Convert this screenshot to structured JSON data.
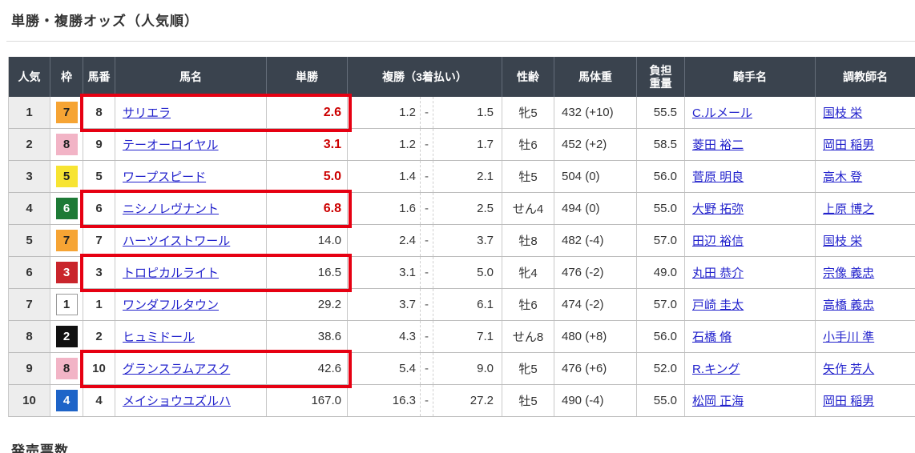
{
  "page": {
    "title": "単勝・複勝オッズ（人気順）",
    "footer_heading": "発売票数"
  },
  "colors": {
    "header_bg": "#3a434e",
    "header_sep": "#646d79",
    "grid": "#bdbdbd",
    "rank_col_bg": "#ededed",
    "link": "#2222cc",
    "hot_odds": "#cc0000",
    "highlight_red": "#e60012"
  },
  "frame_colors": {
    "1": {
      "bg": "#ffffff",
      "text": "#222222",
      "border": "#999999"
    },
    "2": {
      "bg": "#111111",
      "text": "#ffffff"
    },
    "3": {
      "bg": "#c9252c",
      "text": "#ffffff"
    },
    "4": {
      "bg": "#1e64c8",
      "text": "#ffffff"
    },
    "5": {
      "bg": "#f7e432",
      "text": "#222222"
    },
    "6": {
      "bg": "#1e7a36",
      "text": "#ffffff"
    },
    "7": {
      "bg": "#f6a434",
      "text": "#222222"
    },
    "8": {
      "bg": "#f2b4c6",
      "text": "#222222"
    }
  },
  "table": {
    "headers": {
      "rank": "人気",
      "frame": "枠",
      "number": "馬番",
      "horse": "馬名",
      "win": "単勝",
      "place": "複勝（3着払い）",
      "sex_age": "性齢",
      "weight": "馬体重",
      "carried_line1": "負担",
      "carried_line2": "重量",
      "jockey": "騎手名",
      "trainer": "調教師名"
    },
    "rows": [
      {
        "rank": "1",
        "frame": "7",
        "number": "8",
        "horse": "サリエラ",
        "win": "2.6",
        "win_hot": true,
        "place_low": "1.2",
        "place_high": "1.5",
        "sex_age": "牝5",
        "weight": "432 (+10)",
        "carried": "55.5",
        "jockey": "C.ルメール",
        "trainer": "国枝 栄",
        "boxed": true
      },
      {
        "rank": "2",
        "frame": "8",
        "number": "9",
        "horse": "テーオーロイヤル",
        "win": "3.1",
        "win_hot": true,
        "place_low": "1.2",
        "place_high": "1.7",
        "sex_age": "牡6",
        "weight": "452 (+2)",
        "carried": "58.5",
        "jockey": "菱田 裕二",
        "trainer": "岡田 稲男",
        "boxed": false
      },
      {
        "rank": "3",
        "frame": "5",
        "number": "5",
        "horse": "ワープスピード",
        "win": "5.0",
        "win_hot": true,
        "place_low": "1.4",
        "place_high": "2.1",
        "sex_age": "牡5",
        "weight": "504 (0)",
        "carried": "56.0",
        "jockey": "菅原 明良",
        "trainer": "高木 登",
        "boxed": false
      },
      {
        "rank": "4",
        "frame": "6",
        "number": "6",
        "horse": "ニシノレヴナント",
        "win": "6.8",
        "win_hot": true,
        "place_low": "1.6",
        "place_high": "2.5",
        "sex_age": "せん4",
        "weight": "494 (0)",
        "carried": "55.0",
        "jockey": "大野 拓弥",
        "trainer": "上原 博之",
        "boxed": true
      },
      {
        "rank": "5",
        "frame": "7",
        "number": "7",
        "horse": "ハーツイストワール",
        "win": "14.0",
        "win_hot": false,
        "place_low": "2.4",
        "place_high": "3.7",
        "sex_age": "牡8",
        "weight": "482 (-4)",
        "carried": "57.0",
        "jockey": "田辺 裕信",
        "trainer": "国枝 栄",
        "boxed": false
      },
      {
        "rank": "6",
        "frame": "3",
        "number": "3",
        "horse": "トロピカルライト",
        "win": "16.5",
        "win_hot": false,
        "place_low": "3.1",
        "place_high": "5.0",
        "sex_age": "牝4",
        "weight": "476 (-2)",
        "carried": "49.0",
        "jockey": "丸田 恭介",
        "trainer": "宗像 義忠",
        "boxed": true
      },
      {
        "rank": "7",
        "frame": "1",
        "number": "1",
        "horse": "ワンダフルタウン",
        "win": "29.2",
        "win_hot": false,
        "place_low": "3.7",
        "place_high": "6.1",
        "sex_age": "牡6",
        "weight": "474 (-2)",
        "carried": "57.0",
        "jockey": "戸崎 圭太",
        "trainer": "高橋 義忠",
        "boxed": false
      },
      {
        "rank": "8",
        "frame": "2",
        "number": "2",
        "horse": "ヒュミドール",
        "win": "38.6",
        "win_hot": false,
        "place_low": "4.3",
        "place_high": "7.1",
        "sex_age": "せん8",
        "weight": "480 (+8)",
        "carried": "56.0",
        "jockey": "石橋 脩",
        "trainer": "小手川 準",
        "boxed": false
      },
      {
        "rank": "9",
        "frame": "8",
        "number": "10",
        "horse": "グランスラムアスク",
        "win": "42.6",
        "win_hot": false,
        "place_low": "5.4",
        "place_high": "9.0",
        "sex_age": "牝5",
        "weight": "476 (+6)",
        "carried": "52.0",
        "jockey": "R.キング",
        "trainer": "矢作 芳人",
        "boxed": true
      },
      {
        "rank": "10",
        "frame": "4",
        "number": "4",
        "horse": "メイショウユズルハ",
        "win": "167.0",
        "win_hot": false,
        "place_low": "16.3",
        "place_high": "27.2",
        "sex_age": "牡5",
        "weight": "490 (-4)",
        "carried": "55.0",
        "jockey": "松岡 正海",
        "trainer": "岡田 稲男",
        "boxed": false
      }
    ]
  }
}
